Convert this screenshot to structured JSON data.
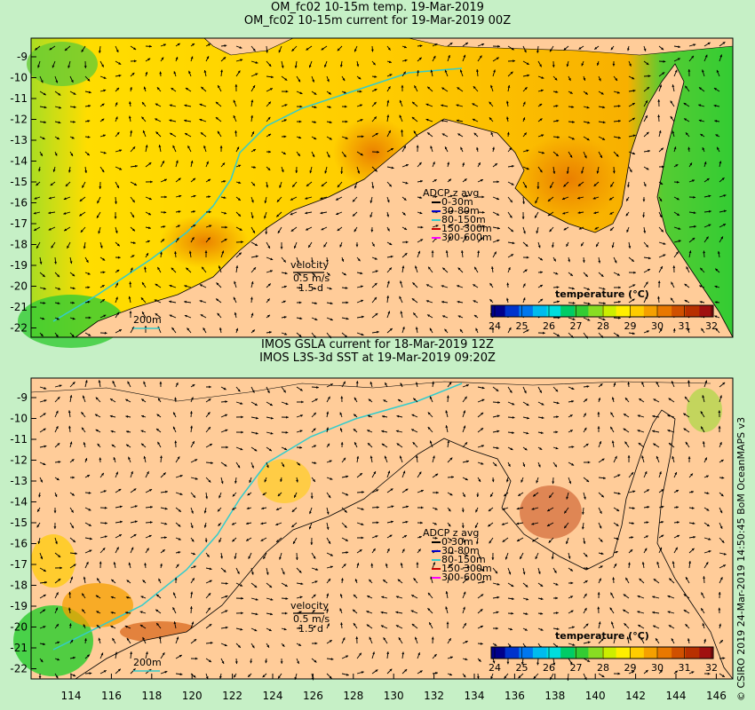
{
  "top": {
    "title_line1": "OM_fc02 10-15m temp. 19-Mar-2019",
    "title_line2": "OM_fc02 10-15m current for 19-Mar-2019 00Z"
  },
  "bottom": {
    "title_line1": "IMOS GSLA current for 18-Mar-2019 12Z",
    "title_line2": "IMOS L3S-3d SST at 19-Mar-2019 09:20Z"
  },
  "y_ticks": [
    "-9",
    "-10",
    "-11",
    "-12",
    "-13",
    "-14",
    "-15",
    "-16",
    "-17",
    "-18",
    "-19",
    "-20",
    "-21",
    "-22"
  ],
  "x_ticks": [
    "114",
    "116",
    "118",
    "120",
    "122",
    "124",
    "126",
    "128",
    "130",
    "132",
    "134",
    "136",
    "138",
    "140",
    "142",
    "144",
    "146"
  ],
  "adcp": {
    "title": "ADCP z avg",
    "items": [
      {
        "label": "0-30m",
        "color": "#000000"
      },
      {
        "label": "30-80m",
        "color": "#0000cc"
      },
      {
        "label": "80-150m",
        "color": "#33cccc"
      },
      {
        "label": "150-300m",
        "color": "#cc0000"
      },
      {
        "label": "300-600m",
        "color": "#ff00ff"
      }
    ]
  },
  "velocity": {
    "title": "velocity",
    "speed": "0.5 m/s",
    "days": "1.5 d"
  },
  "isobath_label": "200m",
  "colorbar": {
    "title": "temperature (°C)",
    "ticks": [
      "24",
      "25",
      "26",
      "27",
      "28",
      "29",
      "30",
      "31",
      "32"
    ],
    "colors": [
      "#00008b",
      "#0033cc",
      "#0077ee",
      "#00bbee",
      "#00dddd",
      "#00cc66",
      "#33cc33",
      "#88dd22",
      "#ccee00",
      "#ffee00",
      "#ffcc00",
      "#f5a000",
      "#e87800",
      "#d05000",
      "#b83000",
      "#a01010"
    ]
  },
  "credit": "© CSIRO 2019   24-Mar-2019 14:50:45 BoM OceanMAPS v3",
  "colors": {
    "land": "#ffcc99",
    "page": "#c6f0c6",
    "current_vector": "#000000",
    "isobath": "#33cccc"
  }
}
